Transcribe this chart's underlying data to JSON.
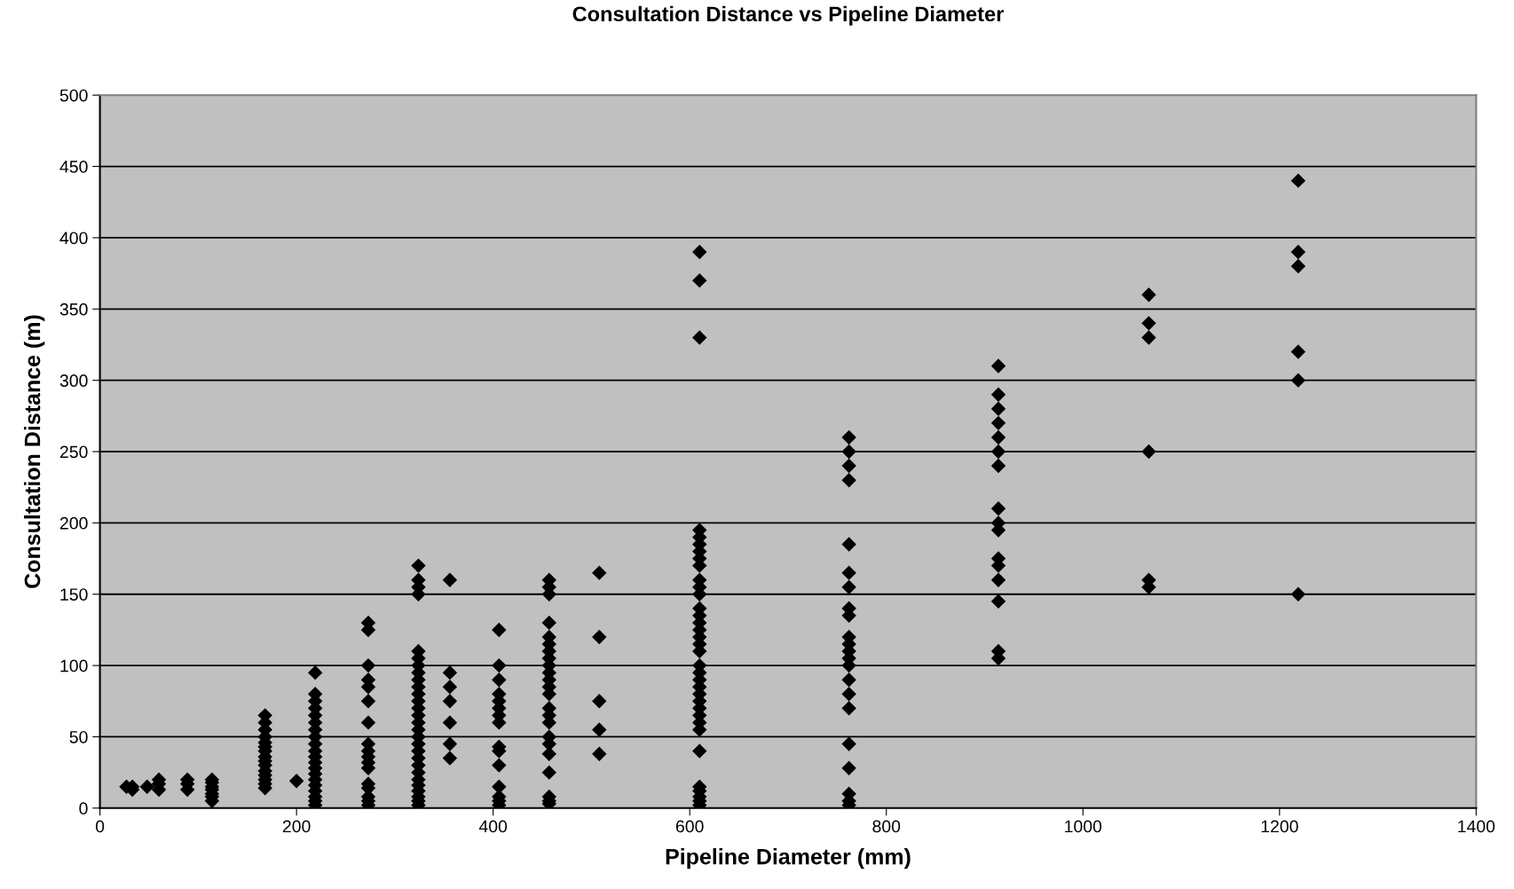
{
  "chart_data": {
    "type": "scatter",
    "title": "Consultation Distance vs Pipeline Diameter",
    "xlabel": "Pipeline Diameter (mm)",
    "ylabel": "Consultation Distance (m)",
    "x": [
      27,
      33,
      33,
      48,
      60,
      60,
      60,
      89,
      89,
      89,
      114,
      114,
      114,
      114,
      114,
      114,
      114,
      168,
      168,
      168,
      168,
      168,
      168,
      168,
      168,
      168,
      168,
      168,
      168,
      168,
      168,
      168,
      200,
      219,
      219,
      219,
      219,
      219,
      219,
      219,
      219,
      219,
      219,
      219,
      219,
      219,
      219,
      219,
      219,
      219,
      219,
      219,
      219,
      273,
      273,
      273,
      273,
      273,
      273,
      273,
      273,
      273,
      273,
      273,
      273,
      273,
      273,
      273,
      273,
      273,
      324,
      324,
      324,
      324,
      324,
      324,
      324,
      324,
      324,
      324,
      324,
      324,
      324,
      324,
      324,
      324,
      324,
      324,
      324,
      324,
      324,
      324,
      324,
      324,
      324,
      324,
      324,
      324,
      356,
      356,
      356,
      356,
      356,
      356,
      356,
      406,
      406,
      406,
      406,
      406,
      406,
      406,
      406,
      406,
      406,
      406,
      406,
      406,
      406,
      406,
      457,
      457,
      457,
      457,
      457,
      457,
      457,
      457,
      457,
      457,
      457,
      457,
      457,
      457,
      457,
      457,
      457,
      457,
      457,
      457,
      457,
      457,
      457,
      508,
      508,
      508,
      508,
      508,
      610,
      610,
      610,
      610,
      610,
      610,
      610,
      610,
      610,
      610,
      610,
      610,
      610,
      610,
      610,
      610,
      610,
      610,
      610,
      610,
      610,
      610,
      610,
      610,
      610,
      610,
      610,
      610,
      610,
      610,
      610,
      610,
      610,
      610,
      610,
      762,
      762,
      762,
      762,
      762,
      762,
      762,
      762,
      762,
      762,
      762,
      762,
      762,
      762,
      762,
      762,
      762,
      762,
      762,
      762,
      762,
      762,
      914,
      914,
      914,
      914,
      914,
      914,
      914,
      914,
      914,
      914,
      914,
      914,
      914,
      914,
      914,
      914,
      1067,
      1067,
      1067,
      1067,
      1067,
      1067,
      1219,
      1219,
      1219,
      1219,
      1219,
      1219
    ],
    "values": [
      15,
      13,
      15,
      15,
      13,
      17,
      20,
      13,
      17,
      20,
      5,
      8,
      10,
      13,
      15,
      18,
      20,
      14,
      17,
      20,
      23,
      26,
      30,
      33,
      36,
      40,
      43,
      46,
      50,
      55,
      60,
      65,
      19,
      2,
      5,
      8,
      12,
      16,
      20,
      24,
      28,
      32,
      36,
      40,
      45,
      50,
      55,
      60,
      65,
      70,
      75,
      80,
      95,
      2,
      5,
      8,
      14,
      17,
      28,
      32,
      36,
      40,
      45,
      60,
      75,
      85,
      90,
      100,
      125,
      130,
      2,
      5,
      8,
      12,
      16,
      20,
      25,
      30,
      35,
      40,
      45,
      50,
      55,
      60,
      65,
      70,
      75,
      80,
      85,
      90,
      95,
      100,
      105,
      110,
      150,
      155,
      160,
      170,
      35,
      45,
      60,
      75,
      85,
      95,
      160,
      2,
      5,
      8,
      15,
      30,
      40,
      43,
      60,
      65,
      70,
      75,
      80,
      90,
      100,
      125,
      3,
      5,
      8,
      25,
      38,
      45,
      50,
      60,
      65,
      70,
      80,
      85,
      90,
      95,
      100,
      105,
      110,
      115,
      120,
      130,
      150,
      155,
      160,
      38,
      55,
      75,
      120,
      165,
      2,
      5,
      8,
      12,
      15,
      40,
      55,
      60,
      65,
      70,
      75,
      80,
      85,
      90,
      95,
      100,
      110,
      115,
      120,
      125,
      130,
      135,
      140,
      150,
      155,
      160,
      170,
      175,
      180,
      185,
      190,
      195,
      330,
      370,
      390,
      2,
      5,
      10,
      28,
      45,
      70,
      80,
      90,
      100,
      105,
      110,
      115,
      120,
      135,
      140,
      155,
      165,
      185,
      230,
      240,
      250,
      260,
      105,
      110,
      145,
      160,
      170,
      175,
      195,
      200,
      210,
      240,
      250,
      260,
      270,
      280,
      290,
      310,
      155,
      160,
      250,
      330,
      340,
      360,
      150,
      300,
      320,
      380,
      390,
      440
    ],
    "color": "#000000",
    "marker": "diamond",
    "grid": "y",
    "xlim": [
      0,
      1400
    ],
    "xticks": [
      0,
      200,
      400,
      600,
      800,
      1000,
      1200,
      1400
    ],
    "ylim": [
      0,
      500
    ],
    "yticks": [
      0,
      50,
      100,
      150,
      200,
      250,
      300,
      350,
      400,
      450,
      500
    ]
  }
}
